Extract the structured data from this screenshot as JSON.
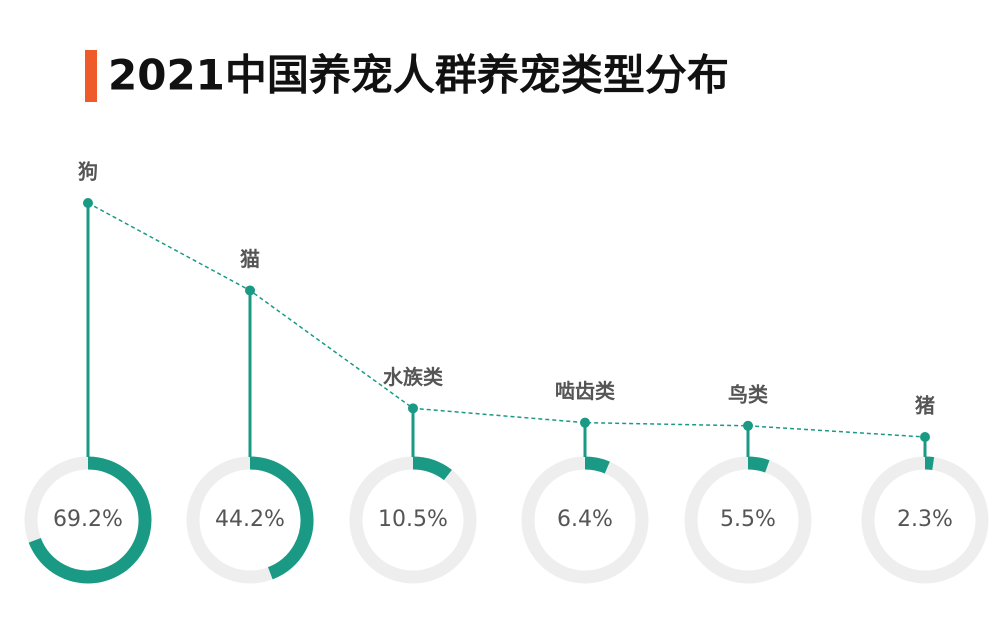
{
  "chart_data": {
    "type": "donut-lollipop",
    "title": "2021中国养宠人群养宠类型分布",
    "categories": [
      "狗",
      "猫",
      "水族类",
      "啮齿类",
      "鸟类",
      "猪"
    ],
    "values": [
      69.2,
      44.2,
      10.5,
      6.4,
      5.5,
      2.3
    ],
    "value_labels": [
      "69.2%",
      "44.2%",
      "10.5%",
      "6.4%",
      "5.5%",
      "2.3%"
    ],
    "color": "#1a9a84",
    "track_color": "#eeeeee"
  }
}
